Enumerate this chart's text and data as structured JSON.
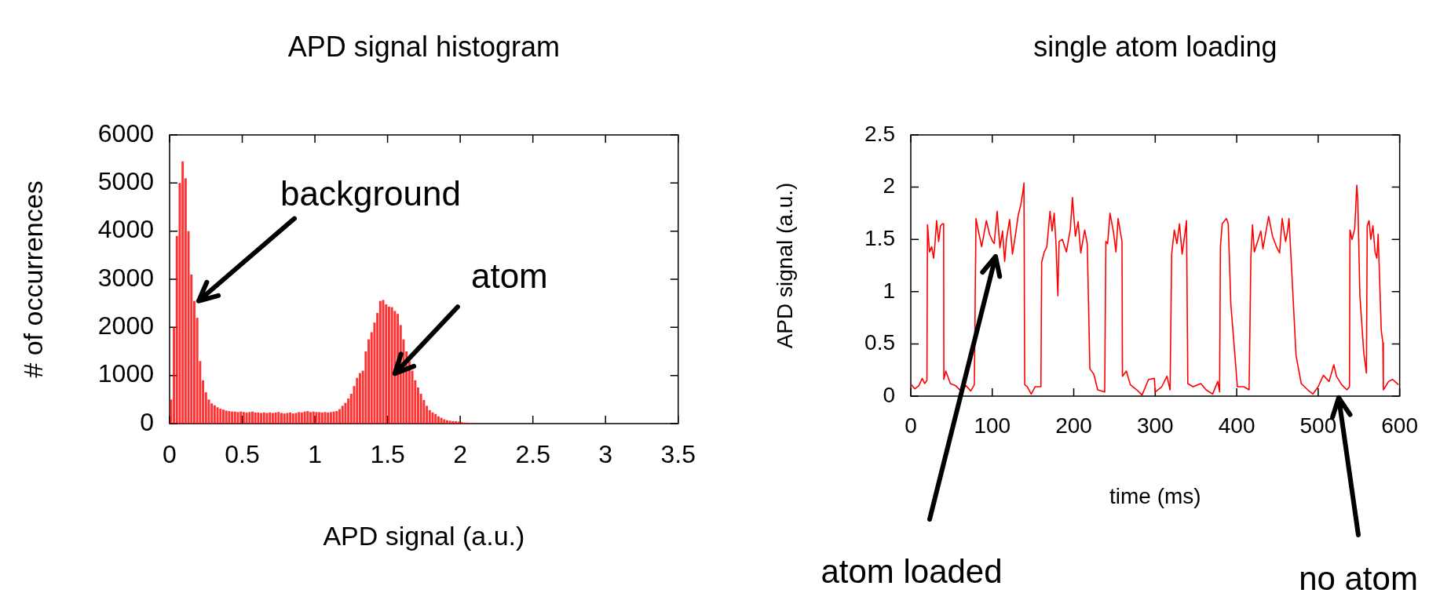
{
  "chart_data": [
    {
      "type": "histogram",
      "title": "APD signal histogram",
      "xlabel": "APD signal (a.u.)",
      "ylabel": "# of occurrences",
      "color": "#ff0000",
      "bins": [
        0,
        0.02,
        0.04,
        0.06,
        0.08,
        0.1,
        0.12,
        0.14,
        0.16,
        0.18,
        0.2,
        0.22,
        0.24,
        0.26,
        0.28,
        0.3,
        0.32,
        0.34,
        0.36,
        0.38,
        0.4,
        0.42,
        0.44,
        0.46,
        0.48,
        0.5,
        0.52,
        0.54,
        0.56,
        0.58,
        0.6,
        0.62,
        0.64,
        0.66,
        0.68,
        0.7,
        0.72,
        0.74,
        0.76,
        0.78,
        0.8,
        0.82,
        0.84,
        0.86,
        0.88,
        0.9,
        0.92,
        0.94,
        0.96,
        0.98,
        1,
        1.02,
        1.04,
        1.06,
        1.08,
        1.1,
        1.12,
        1.14,
        1.16,
        1.18,
        1.2,
        1.22,
        1.24,
        1.26,
        1.28,
        1.3,
        1.32,
        1.34,
        1.36,
        1.38,
        1.4,
        1.42,
        1.44,
        1.46,
        1.48,
        1.5,
        1.52,
        1.54,
        1.56,
        1.58,
        1.6,
        1.62,
        1.64,
        1.66,
        1.68,
        1.7,
        1.72,
        1.74,
        1.76,
        1.78,
        1.8,
        1.82,
        1.84,
        1.86,
        1.88,
        1.9,
        1.92,
        1.94,
        1.96,
        1.98,
        2,
        2.02,
        2.04,
        2.06,
        2.08,
        2.1
      ],
      "values": [
        500,
        2000,
        3900,
        5000,
        5450,
        5100,
        4000,
        3100,
        2550,
        2200,
        1300,
        900,
        650,
        500,
        420,
        380,
        340,
        310,
        290,
        270,
        260,
        250,
        250,
        240,
        250,
        240,
        230,
        240,
        250,
        230,
        230,
        220,
        230,
        220,
        230,
        220,
        230,
        240,
        220,
        210,
        220,
        230,
        210,
        220,
        240,
        230,
        250,
        260,
        240,
        250,
        240,
        240,
        230,
        240,
        230,
        240,
        250,
        260,
        300,
        370,
        430,
        520,
        620,
        780,
        950,
        1050,
        1100,
        1500,
        1750,
        1900,
        2100,
        2300,
        2550,
        2570,
        2480,
        2430,
        2420,
        2340,
        2280,
        2050,
        1750,
        1500,
        1300,
        1100,
        900,
        750,
        620,
        490,
        370,
        280,
        230,
        200,
        150,
        120,
        90,
        70,
        60,
        50,
        50,
        40,
        30,
        20,
        20,
        10,
        10
      ],
      "xlim": [
        0,
        3.5
      ],
      "xticks": [
        0,
        0.5,
        1,
        1.5,
        2,
        2.5,
        3,
        3.5
      ],
      "ylim": [
        0,
        6000
      ],
      "yticks": [
        0,
        1000,
        2000,
        3000,
        4000,
        5000,
        6000
      ],
      "annotations": [
        {
          "text": "background",
          "x": 0.2,
          "y": 2550
        },
        {
          "text": "atom",
          "x": 1.55,
          "y": 1040
        }
      ]
    },
    {
      "type": "line",
      "title": "single atom loading",
      "xlabel": "time (ms)",
      "ylabel": "APD signal (a.u.)",
      "color": "#ff0000",
      "x": [
        0.6,
        5,
        10,
        14,
        17,
        19.8,
        20.5,
        23,
        25.6,
        28,
        29.4,
        31.7,
        34.2,
        36.5,
        39,
        40.3,
        40.6,
        43,
        48.6,
        55,
        61.4,
        67.8,
        73.6,
        78,
        80,
        83.8,
        87,
        92.8,
        96.6,
        100.5,
        102.4,
        106,
        109.4,
        112.6,
        115.2,
        117.4,
        121.3,
        124.8,
        128.6,
        131.8,
        135,
        137.3,
        138.9,
        139.8,
        143,
        147.8,
        152.6,
        159.7,
        160.6,
        163.8,
        167,
        170.9,
        173.4,
        176,
        178.2,
        180.5,
        182,
        186,
        191,
        195.8,
        198.4,
        202,
        205.4,
        208.6,
        213.4,
        216.6,
        219.8,
        224.6,
        229.4,
        238,
        239.4,
        241.6,
        244.5,
        248.6,
        251.8,
        254.4,
        259.2,
        259.8,
        264.6,
        269.4,
        277.4,
        283.8,
        291.8,
        298.9,
        300,
        308,
        314.4,
        318.2,
        320.2,
        323.4,
        326.6,
        329.8,
        333,
        336.2,
        338.4,
        340,
        346.4,
        356,
        362.4,
        370.4,
        376.8,
        379,
        380,
        382.2,
        387.4,
        389.6,
        392.8,
        397.6,
        400.8,
        408.8,
        415.2,
        417.4,
        419.4,
        421.6,
        426.4,
        429.6,
        432.2,
        439.2,
        444,
        448.8,
        452.6,
        455.8,
        460,
        462.2,
        464.2,
        472.8,
        479.2,
        487.2,
        493.6,
        500,
        506.4,
        513.4,
        519.2,
        522.4,
        528.8,
        535.2,
        538.4,
        539,
        541.6,
        544.8,
        547.4,
        548.6,
        551.2,
        556,
        559.2,
        560.2,
        562.4,
        564.6,
        567.2,
        569.8,
        572,
        573.6,
        577.4,
        579.4,
        580,
        586.4,
        591.2,
        598.6
      ],
      "values": [
        0.11,
        0.07,
        0.1,
        0.17,
        0.12,
        0.15,
        1.64,
        1.38,
        1.43,
        1.32,
        1.43,
        1.68,
        1.48,
        1.63,
        1.65,
        1.65,
        0.16,
        0.24,
        0.12,
        0.1,
        0.05,
        0.1,
        0.05,
        0.11,
        1.7,
        1.55,
        1.43,
        1.68,
        1.55,
        1.48,
        1.46,
        1.77,
        1.42,
        1.58,
        1.29,
        1.5,
        1.69,
        1.36,
        1.55,
        1.73,
        1.83,
        1.94,
        2.04,
        0.11,
        0.09,
        0.02,
        0.09,
        0.09,
        1.28,
        1.38,
        1.43,
        1.77,
        1.58,
        1.75,
        1.46,
        0.96,
        1.48,
        1.5,
        1.38,
        1.6,
        1.9,
        1.53,
        1.67,
        1.37,
        1.59,
        1.46,
        0.26,
        0.21,
        0.06,
        0.04,
        1.48,
        1.46,
        1.75,
        1.58,
        1.38,
        1.7,
        1.48,
        0.19,
        0.24,
        0.11,
        0.06,
        0.01,
        0.16,
        0.17,
        0.04,
        0.09,
        0.19,
        0.06,
        1.36,
        1.59,
        1.46,
        1.65,
        1.36,
        1.54,
        1.68,
        0.12,
        0.09,
        0.12,
        0.06,
        0.02,
        0.14,
        0.04,
        1.43,
        1.65,
        1.7,
        1.65,
        0.88,
        0.41,
        0.09,
        0.09,
        0.06,
        1.33,
        1.64,
        1.38,
        1.5,
        1.58,
        1.41,
        1.72,
        1.53,
        1.43,
        1.37,
        1.7,
        1.48,
        1.57,
        1.7,
        0.39,
        0.12,
        0.06,
        0.02,
        0.09,
        0.2,
        0.14,
        0.3,
        0.19,
        0.11,
        0.06,
        0.09,
        1.59,
        1.5,
        1.6,
        2.02,
        1.88,
        0.96,
        0.41,
        0.22,
        1.63,
        1.68,
        1.5,
        1.63,
        1.38,
        1.32,
        1.55,
        0.63,
        0.51,
        0.06,
        0.14,
        0.16,
        0.11
      ],
      "xlim": [
        0,
        600
      ],
      "xticks": [
        0,
        100,
        200,
        300,
        400,
        500,
        600
      ],
      "ylim": [
        0,
        2.5
      ],
      "yticks": [
        0,
        0.5,
        1,
        1.5,
        2,
        2.5
      ],
      "annotations": [
        "atom loaded",
        "no atom"
      ]
    }
  ]
}
